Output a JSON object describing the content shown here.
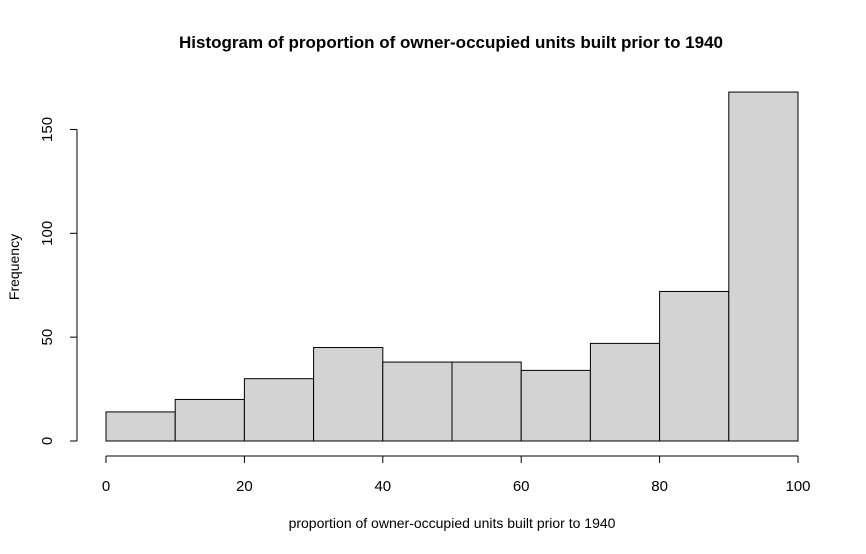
{
  "chart_data": {
    "type": "bar",
    "title": "Histogram of proportion of owner-occupied units built prior to 1940",
    "xlabel": "proportion of owner-occupied units built prior to 1940",
    "ylabel": "Frequency",
    "bin_edges": [
      0,
      10,
      20,
      30,
      40,
      50,
      60,
      70,
      80,
      90,
      100
    ],
    "values": [
      14,
      20,
      30,
      45,
      38,
      38,
      34,
      47,
      72,
      168
    ],
    "xlim": [
      0,
      100
    ],
    "ylim": [
      0,
      168
    ],
    "x_ticks": [
      "0",
      "20",
      "40",
      "60",
      "80",
      "100"
    ],
    "y_ticks": [
      "0",
      "50",
      "100",
      "150"
    ],
    "bar_fill": "#d3d3d3",
    "bar_stroke": "#000000",
    "grid": false,
    "legend": "none"
  }
}
